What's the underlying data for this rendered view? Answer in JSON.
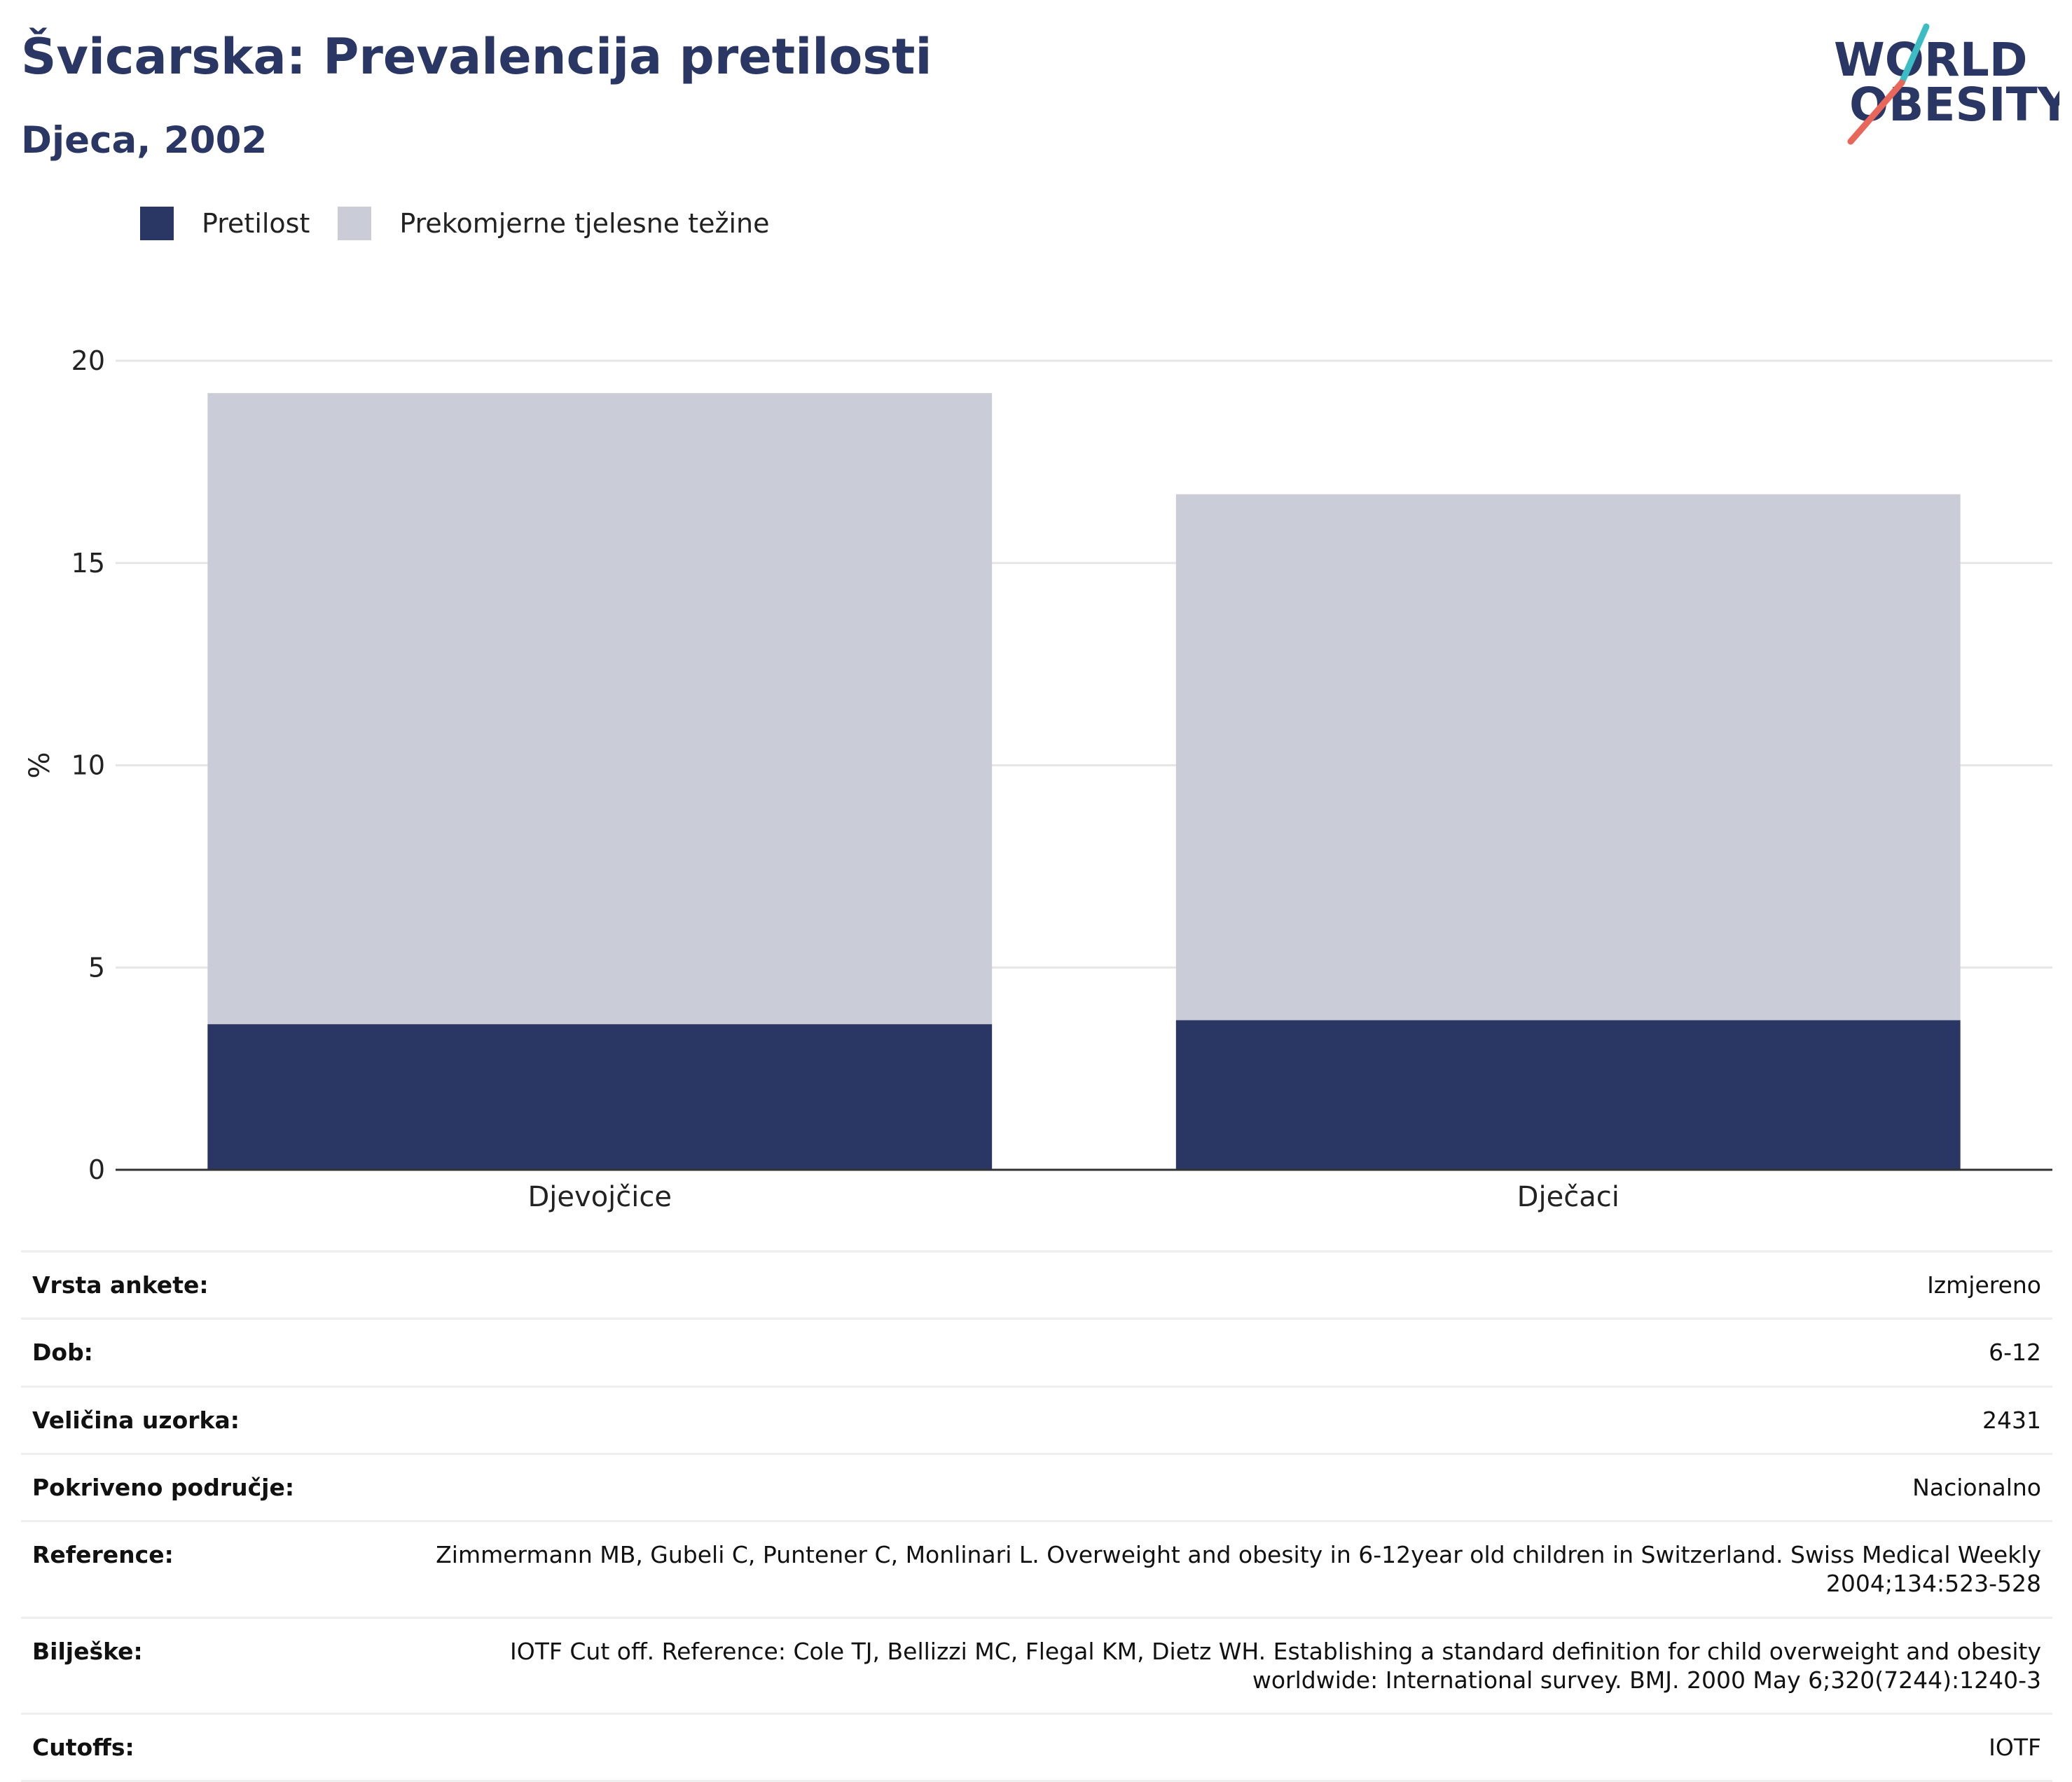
{
  "header": {
    "title": "Švicarska: Prevalencija pretilosti",
    "subtitle": "Djeca, 2002"
  },
  "logo": {
    "line1": "WORLD",
    "line2": "OBESITY",
    "colors": {
      "text": "#2a3663",
      "slash_teal": "#3cbcc3",
      "slash_coral": "#e8675a"
    }
  },
  "colors": {
    "obesity": "#2a3663",
    "overweight": "#cacdd8",
    "grid": "#e6e6e6",
    "axis": "#333333"
  },
  "chart_data": {
    "type": "bar",
    "stacked": true,
    "categories": [
      "Djevojčice",
      "Dječaci"
    ],
    "series": [
      {
        "name": "Pretilost",
        "values": [
          3.6,
          3.7
        ],
        "color": "#2a3663"
      },
      {
        "name": "Prekomjerne tjelesne težine",
        "values": [
          15.6,
          13.0
        ],
        "color": "#cacdd8"
      }
    ],
    "ylabel": "%",
    "ylim": [
      0,
      20
    ],
    "yticks": [
      0,
      5,
      10,
      15,
      20
    ],
    "grid": true,
    "legend_position": "top-left"
  },
  "info": {
    "rows": [
      {
        "label": "Vrsta ankete:",
        "value": "Izmjereno"
      },
      {
        "label": "Dob:",
        "value": "6-12"
      },
      {
        "label": "Veličina uzorka:",
        "value": "2431"
      },
      {
        "label": "Pokriveno područje:",
        "value": "Nacionalno"
      },
      {
        "label": "Reference:",
        "value": "Zimmermann MB, Gubeli C, Puntener C, Monlinari L. Overweight and obesity in 6-12year old children in Switzerland. Swiss Medical Weekly 2004;134:523-528"
      },
      {
        "label": "Bilješke:",
        "value": "IOTF Cut off. Reference: Cole TJ, Bellizzi MC, Flegal KM, Dietz WH. Establishing a standard definition for child overweight and obesity worldwide: International survey. BMJ. 2000 May 6;320(7244):1240-3"
      },
      {
        "label": "Cutoffs:",
        "value": "IOTF"
      }
    ]
  }
}
